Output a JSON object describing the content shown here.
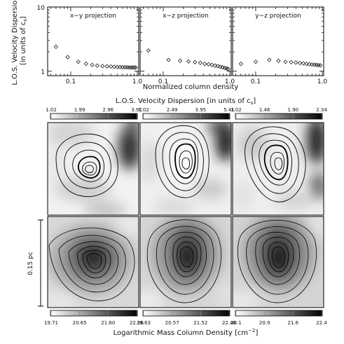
{
  "top_panel": {
    "ylabel_line1": "L.O.S. Velocity Dispersion",
    "ylabel_line2": "[in units of c",
    "ylabel_sub": "s",
    "ylabel_close": "]",
    "xlabel": "Normalized column density",
    "y_ticks": [
      "10",
      "1"
    ],
    "panels": [
      {
        "title": "x−y projection",
        "x_ticks": [
          "0.1",
          "1.0"
        ]
      },
      {
        "title": "x−z projection",
        "x_ticks": [
          "0.1",
          "1.0"
        ]
      },
      {
        "title": "y−z projection",
        "x_ticks": [
          "0.1",
          "1.0"
        ]
      }
    ]
  },
  "chart_data": {
    "type": "scatter",
    "x_scale": "log",
    "y_scale": "log",
    "xlim": [
      0.045,
      1.05
    ],
    "ylim": [
      0.85,
      10
    ],
    "xlabel": "Normalized column density",
    "ylabel": "L.O.S. Velocity Dispersion [in units of c_s]",
    "series": [
      {
        "name": "x−y projection",
        "x": [
          0.06,
          0.09,
          0.13,
          0.17,
          0.21,
          0.25,
          0.3,
          0.35,
          0.4,
          0.45,
          0.5,
          0.55,
          0.6,
          0.65,
          0.7,
          0.75,
          0.8,
          0.85,
          0.9,
          0.95
        ],
        "y": [
          2.4,
          1.65,
          1.4,
          1.3,
          1.25,
          1.22,
          1.2,
          1.19,
          1.18,
          1.17,
          1.16,
          1.16,
          1.15,
          1.15,
          1.15,
          1.14,
          1.14,
          1.14,
          1.14,
          1.14
        ]
      },
      {
        "name": "x−z projection",
        "x": [
          0.06,
          0.12,
          0.18,
          0.24,
          0.3,
          0.36,
          0.42,
          0.48,
          0.54,
          0.6,
          0.66,
          0.72,
          0.78,
          0.84,
          0.9,
          0.95
        ],
        "y": [
          2.1,
          1.5,
          1.45,
          1.42,
          1.38,
          1.35,
          1.3,
          1.28,
          1.25,
          1.22,
          1.2,
          1.17,
          1.15,
          1.12,
          1.1,
          1.08
        ]
      },
      {
        "name": "y−z projection",
        "x": [
          0.06,
          0.1,
          0.16,
          0.22,
          0.28,
          0.34,
          0.4,
          0.46,
          0.52,
          0.58,
          0.64,
          0.7,
          0.76,
          0.82,
          0.88,
          0.94
        ],
        "y": [
          1.3,
          1.4,
          1.5,
          1.45,
          1.4,
          1.38,
          1.36,
          1.34,
          1.32,
          1.3,
          1.28,
          1.27,
          1.26,
          1.25,
          1.24,
          1.23
        ]
      }
    ]
  },
  "middle": {
    "title_main": "L.O.S. Velocity Dispersion [in units of c",
    "title_sub": "s",
    "title_close": "]",
    "colorbars": [
      {
        "ticks": [
          "1.02",
          "1.99",
          "2.96",
          "3.92"
        ]
      },
      {
        "ticks": [
          "1.02",
          "2.49",
          "3.95",
          "5.41"
        ]
      },
      {
        "ticks": [
          "1.02",
          "1.46",
          "1.90",
          "2.34"
        ]
      }
    ]
  },
  "bottom": {
    "scale_label": "0.15 pc",
    "xlabel_main": "Logarithmic Mass Column Density [cm",
    "xlabel_sup": "−2",
    "xlabel_close": "]",
    "colorbars": [
      {
        "ticks": [
          "19.71",
          "20.65",
          "21.60",
          "22.56"
        ]
      },
      {
        "ticks": [
          "19.63",
          "20.57",
          "21.52",
          "22.46"
        ]
      },
      {
        "ticks": [
          "20.1",
          "20.9",
          "21.6",
          "22.4"
        ]
      }
    ]
  }
}
